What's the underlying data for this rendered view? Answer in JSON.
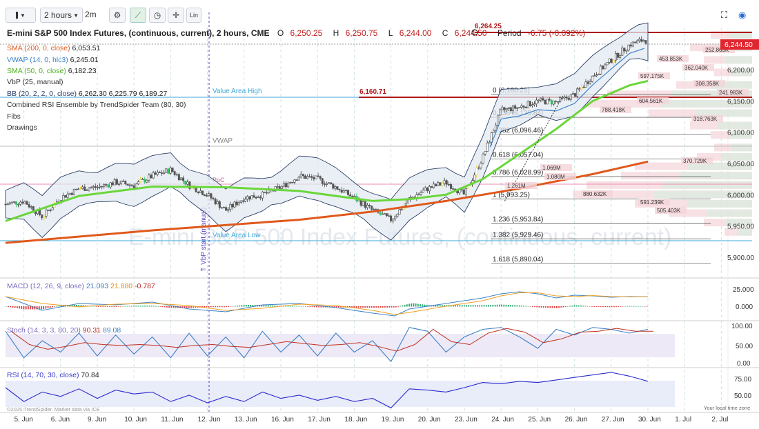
{
  "toolbar": {
    "timeframe": "2 hours",
    "alt_timeframe": "2m",
    "lin_label": "Lin"
  },
  "header": {
    "title": "E-mini S&P 500 Index Futures, (continuous, current), 2 hours, CME",
    "open_label": "O",
    "open": "6,250.25",
    "high_label": "H",
    "high": "6,250.75",
    "low_label": "L",
    "low": "6,244.00",
    "close_label": "C",
    "close": "6,244.50",
    "period_label": "Period",
    "period_change": "-6.75 (-0.092%)"
  },
  "indicators": {
    "sma200": {
      "label": "SMA (200, 0, close)",
      "value": "6,053.51",
      "color": "#e0581b"
    },
    "vwap": {
      "label": "VWAP (14, 0, hlc3)",
      "value": "6,245.01",
      "color": "#3b82c8"
    },
    "sma50": {
      "label": "SMA (50, 0, close)",
      "value": "6,182.23",
      "color": "#6ad63a"
    },
    "vbp": {
      "label": "VbP (25, manual)"
    },
    "bb": {
      "label": "BB (20, 2, 2, 0, close)",
      "values": "6,262.30 6,225.79 6,189.27"
    },
    "rsi_ensemble": {
      "label": "Combined RSI Ensemble by TrendSpider Team (80, 30)"
    },
    "fibs": {
      "label": "Fibs"
    },
    "drawings": {
      "label": "Drawings"
    }
  },
  "annotations": {
    "value_area_high": "Value Area High",
    "value_area_low": "Value Area Low",
    "vwap_label": "VWAP",
    "poc_label": "PoC",
    "vbp_start": "⇑ VbP start (manual)",
    "level_6160": "6,160.71",
    "level_6264": "6,264.25",
    "watermark": "E-mini S&P 500 Index Futures, (continuous, current)",
    "price_tag": "6,244.50"
  },
  "fibs": [
    {
      "label": "0 (6,160.25)",
      "price": 6160.25
    },
    {
      "label": "0.236 (6,123.84)",
      "price": 6123.84
    },
    {
      "label": "0.382 (6,096.46)",
      "price": 6096.46
    },
    {
      "label": "0.618 (6,057.04)",
      "price": 6057.04
    },
    {
      "label": "0.786 (6,028.99)",
      "price": 6028.99
    },
    {
      "label": "1 (5,993.25)",
      "price": 5993.25
    },
    {
      "label": "1.236 (5,953.84)",
      "price": 5953.84
    },
    {
      "label": "1.382 (5,929.46)",
      "price": 5929.46
    },
    {
      "label": "1.618 (5,890.04)",
      "price": 5890.04
    }
  ],
  "volume_labels": [
    "252.863K",
    "453.853K",
    "362.040K",
    "597.175K",
    "308.358K",
    "241.983K",
    "604.561K",
    "788.418K",
    "318.763K",
    "370.729K",
    "1.069M",
    "1.080M",
    "1.261M",
    "880.632K",
    "591.239K",
    "505.403K"
  ],
  "macd": {
    "label": "MACD (12, 26, 9, close)",
    "v1": "21.093",
    "v2": "21.880",
    "v3": "-0.787",
    "ticks": [
      "25.000",
      "0.000"
    ]
  },
  "stoch": {
    "label": "Stoch (14, 3, 3, 80, 20)",
    "v1": "90.31",
    "v2": "89.08",
    "ticks": [
      "100.00",
      "50.00",
      "0.00"
    ]
  },
  "rsi": {
    "label": "RSI (14, 70, 30, close)",
    "v1": "70.84",
    "ticks": [
      "75.00",
      "50.00"
    ]
  },
  "footer": {
    "copyright": "©2025 TrendSpider. Market data via ICE",
    "local_time": "Your local time zone"
  },
  "chart_data": {
    "type": "candlestick",
    "title": "E-mini S&P 500 Index Futures, (continuous, current), 2 hours, CME",
    "x_ticks": [
      "5. Jun",
      "6. Jun",
      "9. Jun",
      "10. Jun",
      "11. Jun",
      "12. Jun",
      "13. Jun",
      "16. Jun",
      "17. Jun",
      "18. Jun",
      "19. Jun",
      "20. Jun",
      "23. Jun",
      "24. Jun",
      "25. Jun",
      "26. Jun",
      "27. Jun",
      "30. Jun",
      "1. Jul",
      "2. Jul"
    ],
    "price_axis": [
      "6,200.00",
      "6,150.00",
      "6,100.00",
      "6,050.00",
      "6,000.00",
      "5,950.00",
      "5,900.00"
    ],
    "ylim": [
      5880,
      6275
    ],
    "close_path": [
      [
        0,
        5985
      ],
      [
        0.5,
        5990
      ],
      [
        1,
        5965
      ],
      [
        1.5,
        5995
      ],
      [
        2,
        6010
      ],
      [
        2.5,
        6012
      ],
      [
        3,
        6020
      ],
      [
        3.5,
        6015
      ],
      [
        4,
        6030
      ],
      [
        4.5,
        6040
      ],
      [
        5,
        6015
      ],
      [
        5.5,
        6000
      ],
      [
        6,
        5975
      ],
      [
        6.5,
        5995
      ],
      [
        7,
        6000
      ],
      [
        7.5,
        6012
      ],
      [
        8,
        6030
      ],
      [
        8.5,
        6025
      ],
      [
        9,
        6012
      ],
      [
        9.5,
        5995
      ],
      [
        10,
        5975
      ],
      [
        10.5,
        5960
      ],
      [
        11,
        5993
      ],
      [
        11.5,
        6010
      ],
      [
        12,
        6020
      ],
      [
        12.5,
        6000
      ],
      [
        13,
        6060
      ],
      [
        13.5,
        6135
      ],
      [
        14,
        6140
      ],
      [
        14.5,
        6150
      ],
      [
        15,
        6148
      ],
      [
        15.5,
        6160
      ],
      [
        16,
        6190
      ],
      [
        16.5,
        6215
      ],
      [
        17,
        6240
      ],
      [
        17.4,
        6248
      ],
      [
        17.5,
        6244.5
      ]
    ],
    "sma50_path": [
      [
        0,
        5958
      ],
      [
        2,
        5998
      ],
      [
        4,
        6013
      ],
      [
        6,
        6012
      ],
      [
        8,
        6006
      ],
      [
        10,
        5990
      ],
      [
        11,
        5993
      ],
      [
        12,
        6000
      ],
      [
        13,
        6025
      ],
      [
        14,
        6065
      ],
      [
        15,
        6105
      ],
      [
        16,
        6150
      ],
      [
        17,
        6175
      ],
      [
        17.5,
        6182
      ]
    ],
    "sma200_path": [
      [
        0,
        5923
      ],
      [
        4,
        5943
      ],
      [
        8,
        5960
      ],
      [
        10,
        5973
      ],
      [
        12,
        5990
      ],
      [
        14,
        6010
      ],
      [
        16,
        6033
      ],
      [
        17.5,
        6053
      ]
    ],
    "macd_path": [
      [
        0,
        0.7
      ],
      [
        1,
        -0.3
      ],
      [
        2,
        0.2
      ],
      [
        3,
        0.1
      ],
      [
        4,
        0.3
      ],
      [
        5,
        -0.2
      ],
      [
        6,
        -0.4
      ],
      [
        7,
        0.1
      ],
      [
        8,
        0.2
      ],
      [
        9,
        -0.1
      ],
      [
        10,
        -0.5
      ],
      [
        10.6,
        -0.7
      ],
      [
        11,
        -0.2
      ],
      [
        12,
        0.2
      ],
      [
        13,
        0.6
      ],
      [
        13.5,
        0.9
      ],
      [
        14,
        1.05
      ],
      [
        14.5,
        0.9
      ],
      [
        15,
        0.6
      ],
      [
        15.5,
        0.8
      ],
      [
        16,
        0.75
      ],
      [
        16.5,
        0.65
      ],
      [
        17,
        0.7
      ],
      [
        17.5,
        0.68
      ]
    ],
    "stoch_path": [
      [
        0,
        85
      ],
      [
        0.5,
        15
      ],
      [
        1,
        60
      ],
      [
        1.5,
        30
      ],
      [
        2,
        80
      ],
      [
        2.5,
        20
      ],
      [
        3,
        75
      ],
      [
        3.5,
        25
      ],
      [
        4,
        70
      ],
      [
        4.5,
        15
      ],
      [
        5,
        80
      ],
      [
        5.5,
        20
      ],
      [
        6,
        70
      ],
      [
        6.5,
        15
      ],
      [
        7,
        85
      ],
      [
        7.5,
        30
      ],
      [
        8,
        75
      ],
      [
        8.5,
        20
      ],
      [
        9,
        80
      ],
      [
        9.5,
        30
      ],
      [
        10,
        60
      ],
      [
        10.5,
        5
      ],
      [
        11,
        95
      ],
      [
        11.5,
        85
      ],
      [
        12,
        30
      ],
      [
        12.5,
        70
      ],
      [
        13,
        90
      ],
      [
        13.5,
        95
      ],
      [
        14,
        70
      ],
      [
        14.5,
        40
      ],
      [
        15,
        90
      ],
      [
        15.5,
        75
      ],
      [
        16,
        95
      ],
      [
        16.5,
        90
      ],
      [
        17,
        80
      ],
      [
        17.5,
        90
      ]
    ],
    "rsi_path": [
      [
        0,
        62
      ],
      [
        0.5,
        40
      ],
      [
        1,
        55
      ],
      [
        1.5,
        48
      ],
      [
        2,
        60
      ],
      [
        2.5,
        45
      ],
      [
        3,
        58
      ],
      [
        3.5,
        52
      ],
      [
        4,
        55
      ],
      [
        4.5,
        40
      ],
      [
        5,
        50
      ],
      [
        5.5,
        38
      ],
      [
        6,
        48
      ],
      [
        6.5,
        40
      ],
      [
        7,
        55
      ],
      [
        7.5,
        45
      ],
      [
        8,
        50
      ],
      [
        8.5,
        42
      ],
      [
        9,
        48
      ],
      [
        9.5,
        40
      ],
      [
        10,
        45
      ],
      [
        10.5,
        30
      ],
      [
        11,
        60
      ],
      [
        11.5,
        58
      ],
      [
        12,
        55
      ],
      [
        12.5,
        62
      ],
      [
        13,
        70
      ],
      [
        13.5,
        68
      ],
      [
        14,
        72
      ],
      [
        14.5,
        70
      ],
      [
        15,
        74
      ],
      [
        15.5,
        78
      ],
      [
        16,
        82
      ],
      [
        16.5,
        86
      ],
      [
        17,
        80
      ],
      [
        17.5,
        72
      ]
    ]
  }
}
